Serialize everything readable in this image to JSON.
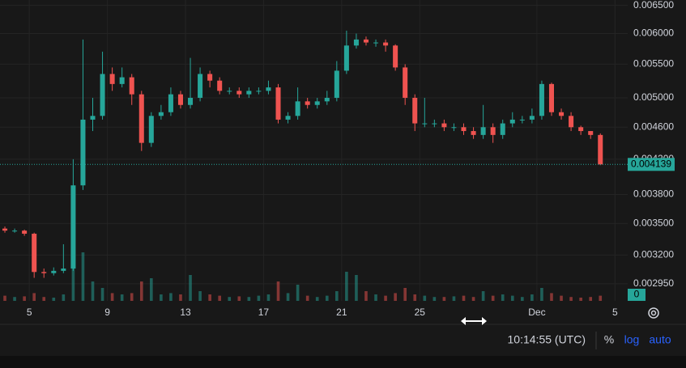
{
  "chart_data": {
    "type": "candlestick",
    "log_scale": true,
    "grid": true,
    "up_color": "#26a69a",
    "down_color": "#ef5350",
    "open": [
      0.00345,
      0.00343,
      0.00343,
      0.0034,
      0.00305,
      0.00304,
      0.00306,
      0.00308,
      0.0039,
      0.0047,
      0.00475,
      0.00535,
      0.0052,
      0.0053,
      0.00505,
      0.0044,
      0.00475,
      0.0048,
      0.00505,
      0.0049,
      0.005,
      0.00535,
      0.00525,
      0.0051,
      0.0051,
      0.00505,
      0.0051,
      0.0051,
      0.00515,
      0.0047,
      0.00475,
      0.00495,
      0.0049,
      0.00495,
      0.005,
      0.0054,
      0.0058,
      0.0059,
      0.00585,
      0.00585,
      0.0058,
      0.00545,
      0.005,
      0.00465,
      0.00465,
      0.00465,
      0.0046,
      0.0046,
      0.00455,
      0.0045,
      0.0046,
      0.0045,
      0.00465,
      0.0047,
      0.0047,
      0.00475,
      0.0052,
      0.0048,
      0.00475,
      0.0046,
      0.00455,
      0.0045
    ],
    "high": [
      0.00347,
      0.00345,
      0.00344,
      0.00341,
      0.00308,
      0.00309,
      0.0033,
      0.0042,
      0.0059,
      0.005,
      0.0057,
      0.00545,
      0.00545,
      0.00535,
      0.0051,
      0.0048,
      0.0049,
      0.00515,
      0.0051,
      0.0056,
      0.00545,
      0.0054,
      0.0053,
      0.00515,
      0.00515,
      0.00515,
      0.00515,
      0.00525,
      0.0052,
      0.0048,
      0.00515,
      0.005,
      0.005,
      0.0051,
      0.00555,
      0.00605,
      0.006,
      0.00595,
      0.0059,
      0.0059,
      0.00582,
      0.0055,
      0.00505,
      0.005,
      0.0047,
      0.0047,
      0.00465,
      0.00465,
      0.0046,
      0.0049,
      0.00465,
      0.0047,
      0.0048,
      0.00475,
      0.00485,
      0.00525,
      0.00522,
      0.00485,
      0.0048,
      0.00462,
      0.00455,
      0.00452
    ],
    "low": [
      0.00341,
      0.00341,
      0.00338,
      0.003,
      0.003,
      0.00302,
      0.00304,
      0.00306,
      0.00385,
      0.00455,
      0.0047,
      0.0051,
      0.00515,
      0.0049,
      0.0043,
      0.00435,
      0.0047,
      0.00475,
      0.00485,
      0.00485,
      0.00495,
      0.00515,
      0.00505,
      0.00505,
      0.005,
      0.005,
      0.00505,
      0.00505,
      0.00465,
      0.00465,
      0.0047,
      0.00485,
      0.00485,
      0.0049,
      0.00495,
      0.00535,
      0.00575,
      0.0058,
      0.00578,
      0.0057,
      0.0054,
      0.0049,
      0.00455,
      0.0046,
      0.0046,
      0.00455,
      0.00455,
      0.0045,
      0.00445,
      0.00445,
      0.0044,
      0.00445,
      0.0046,
      0.00465,
      0.00465,
      0.0047,
      0.00475,
      0.0047,
      0.00455,
      0.0045,
      0.00445,
      0.00413
    ],
    "close": [
      0.00343,
      0.00343,
      0.0034,
      0.00305,
      0.00304,
      0.00306,
      0.00308,
      0.0039,
      0.0047,
      0.00475,
      0.00535,
      0.0052,
      0.0053,
      0.00505,
      0.0044,
      0.00475,
      0.0048,
      0.00505,
      0.0049,
      0.005,
      0.00535,
      0.00525,
      0.0051,
      0.0051,
      0.00505,
      0.0051,
      0.0051,
      0.00515,
      0.0047,
      0.00475,
      0.00495,
      0.0049,
      0.00495,
      0.005,
      0.0054,
      0.0058,
      0.0059,
      0.00585,
      0.00585,
      0.0058,
      0.00545,
      0.005,
      0.00465,
      0.00465,
      0.00465,
      0.0046,
      0.0046,
      0.00455,
      0.0045,
      0.0046,
      0.0045,
      0.00465,
      0.0047,
      0.0047,
      0.00475,
      0.0052,
      0.0048,
      0.00475,
      0.0046,
      0.00455,
      0.0045,
      0.004139
    ],
    "ylim": [
      0.00281,
      0.0066
    ],
    "yticks": [
      {
        "value": 0.0065,
        "label": "0.006500"
      },
      {
        "value": 0.006,
        "label": "0.006000"
      },
      {
        "value": 0.0055,
        "label": "0.005500"
      },
      {
        "value": 0.005,
        "label": "0.005000"
      },
      {
        "value": 0.0046,
        "label": "0.004600"
      },
      {
        "value": 0.0042,
        "label": "0.004200"
      },
      {
        "value": 0.0038,
        "label": "0.003800"
      },
      {
        "value": 0.0035,
        "label": "0.003500"
      },
      {
        "value": 0.0032,
        "label": "0.003200"
      },
      {
        "value": 0.00295,
        "label": "0.002950"
      }
    ],
    "xlim": [
      0,
      64.3
    ],
    "xticks": [
      {
        "value": 3,
        "label": "5"
      },
      {
        "value": 11,
        "label": "9"
      },
      {
        "value": 19,
        "label": "13"
      },
      {
        "value": 27,
        "label": "17"
      },
      {
        "value": 35,
        "label": "21"
      },
      {
        "value": 43,
        "label": "25"
      },
      {
        "value": 55,
        "label": "Dec"
      },
      {
        "value": 63,
        "label": "5"
      }
    ],
    "volume": {
      "values": [
        8,
        6,
        7,
        12,
        6,
        5,
        10,
        50,
        75,
        30,
        20,
        12,
        10,
        12,
        30,
        35,
        10,
        12,
        10,
        40,
        15,
        10,
        8,
        6,
        7,
        6,
        8,
        10,
        30,
        12,
        25,
        8,
        6,
        8,
        15,
        45,
        40,
        15,
        10,
        8,
        12,
        20,
        10,
        8,
        6,
        6,
        7,
        8,
        6,
        15,
        8,
        10,
        8,
        6,
        10,
        20,
        12,
        8,
        6,
        5,
        6,
        8
      ],
      "ylim": [
        0,
        100
      ],
      "yticks": [
        0
      ]
    }
  },
  "footer": {
    "time": "10:14:55 (UTC)",
    "percent": "%",
    "log": "log",
    "auto": "auto"
  }
}
